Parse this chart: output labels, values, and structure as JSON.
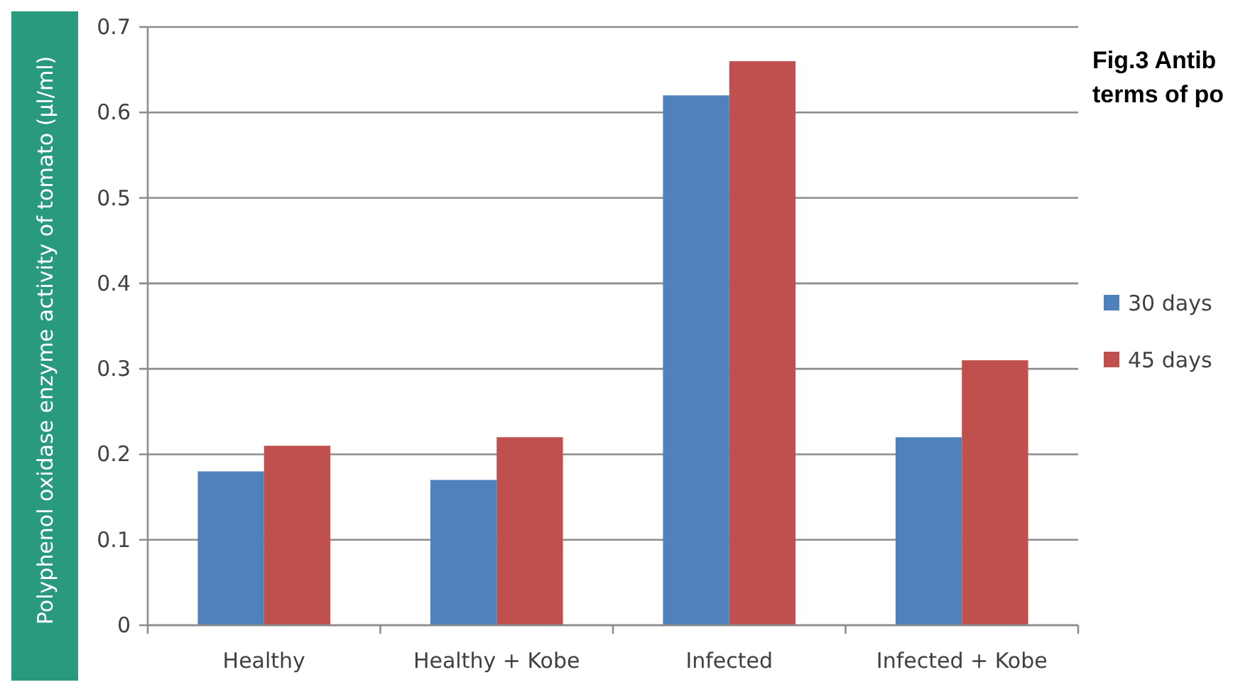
{
  "chart_data": {
    "type": "bar",
    "ylabel": "Polyphenol oxidase enzyme activity of tomato (µl/ml)",
    "annotations": [
      "Fig.3 Antib",
      "terms of po"
    ],
    "categories": [
      "Healthy",
      "Healthy + Kobe",
      "Infected",
      "Infected + Kobe"
    ],
    "series": [
      {
        "name": "30 days",
        "color": "#4f81bd",
        "values": [
          0.18,
          0.17,
          0.62,
          0.22
        ]
      },
      {
        "name": "45 days",
        "color": "#c0504d",
        "values": [
          0.21,
          0.22,
          0.66,
          0.31
        ]
      }
    ],
    "ylim": [
      0,
      0.7
    ],
    "yticks": [
      0,
      {
        "value": 0.1,
        "label": "0.1"
      },
      {
        "value": 0.2,
        "label": "0.2"
      },
      {
        "value": 0.3,
        "label": "0.3"
      },
      {
        "value": 0.4,
        "label": "0.4"
      },
      {
        "value": 0.5,
        "label": "0.5"
      },
      {
        "value": 0.6,
        "label": "0.6"
      },
      {
        "value": 0.7,
        "label": "0.7"
      }
    ],
    "grid": "y",
    "legend": "right"
  }
}
